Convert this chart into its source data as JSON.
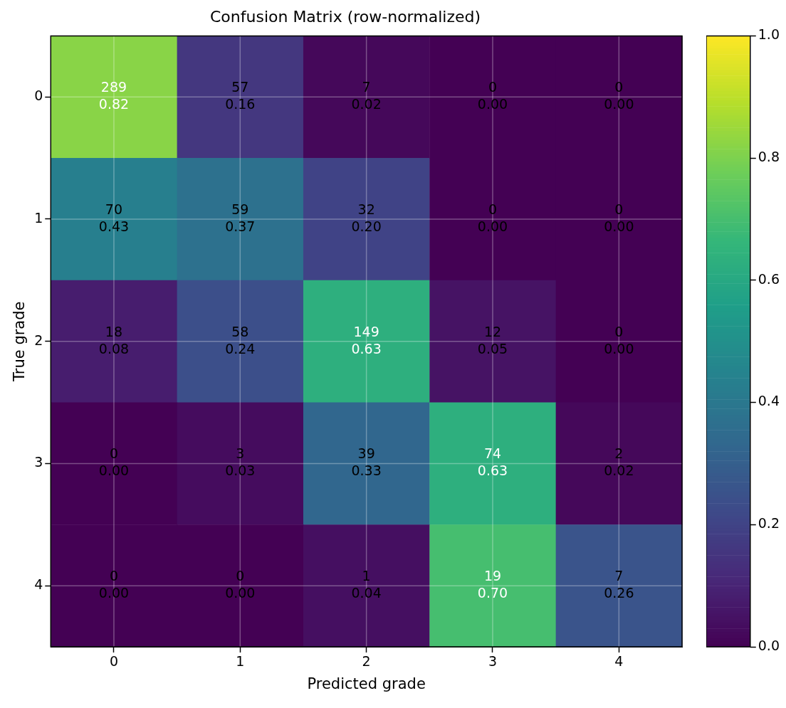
{
  "chart_data": {
    "type": "heatmap",
    "title": "Confusion Matrix (row-normalized)",
    "xlabel": "Predicted grade",
    "ylabel": "True grade",
    "categories": [
      "0",
      "1",
      "2",
      "3",
      "4"
    ],
    "y_categories": [
      "0",
      "1",
      "2",
      "3",
      "4"
    ],
    "cells": [
      [
        0.82,
        0.16,
        0.02,
        0.0,
        0.0
      ],
      [
        0.43,
        0.37,
        0.2,
        0.0,
        0.0
      ],
      [
        0.08,
        0.24,
        0.63,
        0.05,
        0.0
      ],
      [
        0.0,
        0.03,
        0.33,
        0.63,
        0.02
      ],
      [
        0.0,
        0.0,
        0.04,
        0.7,
        0.26
      ]
    ],
    "cell_labels": [
      [
        "289\n0.82",
        "57\n0.16",
        "7\n0.02",
        "0\n0.00",
        "0\n0.00"
      ],
      [
        "70\n0.43",
        "59\n0.37",
        "32\n0.20",
        "0\n0.00",
        "0\n0.00"
      ],
      [
        "18\n0.08",
        "58\n0.24",
        "149\n0.63",
        "12\n0.05",
        "0\n0.00"
      ],
      [
        "0\n0.00",
        "3\n0.03",
        "39\n0.33",
        "74\n0.63",
        "2\n0.02"
      ],
      [
        "0\n0.00",
        "0\n0.00",
        "1\n0.04",
        "19\n0.70",
        "7\n0.26"
      ]
    ],
    "clim": [
      0,
      1
    ],
    "cticks": [
      {
        "value": 0,
        "label": "0.0"
      },
      {
        "value": 0.2,
        "label": "0.2"
      },
      {
        "value": 0.4,
        "label": "0.4"
      },
      {
        "value": 0.6,
        "label": "0.6"
      },
      {
        "value": 0.8,
        "label": "0.8"
      },
      {
        "value": 1,
        "label": "1.0"
      }
    ],
    "grid": true
  }
}
